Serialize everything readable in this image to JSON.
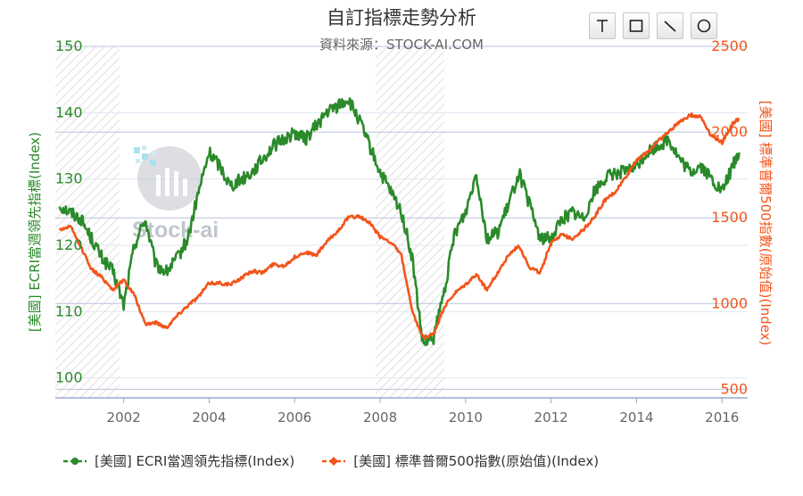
{
  "title": "自訂指標走勢分析",
  "subtitle": "資料來源：STOCK-AI.COM",
  "watermark_text": "Stock-ai",
  "toolbar": {
    "tools": [
      {
        "name": "horizontal-line-tool",
        "icon": "t-bar-icon"
      },
      {
        "name": "rectangle-tool",
        "icon": "square-icon"
      },
      {
        "name": "trend-line-tool",
        "icon": "diagonal-line-icon"
      },
      {
        "name": "ellipse-tool",
        "icon": "circle-icon"
      }
    ]
  },
  "colors": {
    "green": "#2a8a2a",
    "orange": "#f2551b",
    "grid": "#b8c4dc",
    "axis": "#9aaad0",
    "tick_text": "#666666"
  },
  "chart_data": {
    "type": "line",
    "x_ticks": [
      "2002",
      "2004",
      "2006",
      "2008",
      "2010",
      "2012",
      "2014",
      "2016"
    ],
    "x_range": [
      2000.4,
      2016.6
    ],
    "left_axis": {
      "label": "[美國] ECRI當週領先指標(Index)",
      "range": [
        97,
        150
      ],
      "ticks": [
        "100",
        "110",
        "120",
        "130",
        "140",
        "150"
      ]
    },
    "right_axis": {
      "label": "[美國] 標準普爾500指數(原始值)(Index)",
      "range": [
        450,
        2500
      ],
      "ticks": [
        "500",
        "1000",
        "1500",
        "2000",
        "2500"
      ]
    },
    "shaded_periods": [
      [
        2000.4,
        2001.9
      ],
      [
        2007.9,
        2009.5
      ]
    ],
    "series": [
      {
        "name": "[美國] ECRI當週領先指標(Index)",
        "axis": "left",
        "color": "#2a8a2a",
        "x": [
          2000.5,
          2000.75,
          2001.0,
          2001.25,
          2001.5,
          2001.75,
          2002.0,
          2002.25,
          2002.5,
          2002.75,
          2003.0,
          2003.25,
          2003.5,
          2003.75,
          2004.0,
          2004.25,
          2004.5,
          2004.75,
          2005.0,
          2005.25,
          2005.5,
          2005.75,
          2006.0,
          2006.25,
          2006.5,
          2006.75,
          2007.0,
          2007.25,
          2007.5,
          2007.75,
          2008.0,
          2008.25,
          2008.5,
          2008.75,
          2009.0,
          2009.25,
          2009.5,
          2009.75,
          2010.0,
          2010.25,
          2010.5,
          2010.75,
          2011.0,
          2011.25,
          2011.5,
          2011.75,
          2012.0,
          2012.25,
          2012.5,
          2012.75,
          2013.0,
          2013.25,
          2013.5,
          2013.75,
          2014.0,
          2014.25,
          2014.5,
          2014.75,
          2015.0,
          2015.25,
          2015.5,
          2015.75,
          2016.0,
          2016.25,
          2016.4
        ],
        "y": [
          126,
          125,
          124,
          121,
          118,
          116,
          111,
          120,
          124,
          117,
          116,
          118,
          121,
          128,
          134,
          132,
          129,
          130,
          131,
          133,
          135,
          136,
          137,
          136,
          138,
          140,
          141,
          142,
          139,
          135,
          131,
          128,
          125,
          118,
          105,
          106,
          113,
          122,
          125,
          131,
          121,
          122,
          126,
          131,
          126,
          121,
          121,
          124,
          125,
          124,
          128,
          130,
          131,
          131,
          132,
          134,
          135,
          136,
          133,
          131,
          132,
          130,
          128,
          132,
          134
        ],
        "jitter": 1.0
      },
      {
        "name": "[美國] 標準普爾500指數(原始值)(Index)",
        "axis": "right",
        "color": "#f2551b",
        "x": [
          2000.5,
          2000.75,
          2001.0,
          2001.25,
          2001.5,
          2001.75,
          2002.0,
          2002.25,
          2002.5,
          2002.75,
          2003.0,
          2003.25,
          2003.5,
          2003.75,
          2004.0,
          2004.25,
          2004.5,
          2004.75,
          2005.0,
          2005.25,
          2005.5,
          2005.75,
          2006.0,
          2006.25,
          2006.5,
          2006.75,
          2007.0,
          2007.25,
          2007.5,
          2007.75,
          2008.0,
          2008.25,
          2008.5,
          2008.75,
          2009.0,
          2009.25,
          2009.5,
          2009.75,
          2010.0,
          2010.25,
          2010.5,
          2010.75,
          2011.0,
          2011.25,
          2011.5,
          2011.75,
          2012.0,
          2012.25,
          2012.5,
          2012.75,
          2013.0,
          2013.25,
          2013.5,
          2013.75,
          2014.0,
          2014.25,
          2014.5,
          2014.75,
          2015.0,
          2015.25,
          2015.5,
          2015.75,
          2016.0,
          2016.25,
          2016.4
        ],
        "y": [
          1430,
          1450,
          1330,
          1200,
          1150,
          1080,
          1140,
          1050,
          880,
          890,
          860,
          930,
          990,
          1040,
          1120,
          1120,
          1110,
          1150,
          1190,
          1180,
          1230,
          1220,
          1270,
          1300,
          1280,
          1360,
          1420,
          1500,
          1510,
          1470,
          1390,
          1360,
          1280,
          950,
          800,
          820,
          980,
          1060,
          1110,
          1170,
          1080,
          1180,
          1280,
          1340,
          1210,
          1180,
          1360,
          1400,
          1380,
          1430,
          1500,
          1600,
          1650,
          1740,
          1840,
          1880,
          1950,
          2000,
          2060,
          2100,
          2090,
          1980,
          1940,
          2050,
          2080
        ],
        "jitter": 10
      }
    ]
  }
}
